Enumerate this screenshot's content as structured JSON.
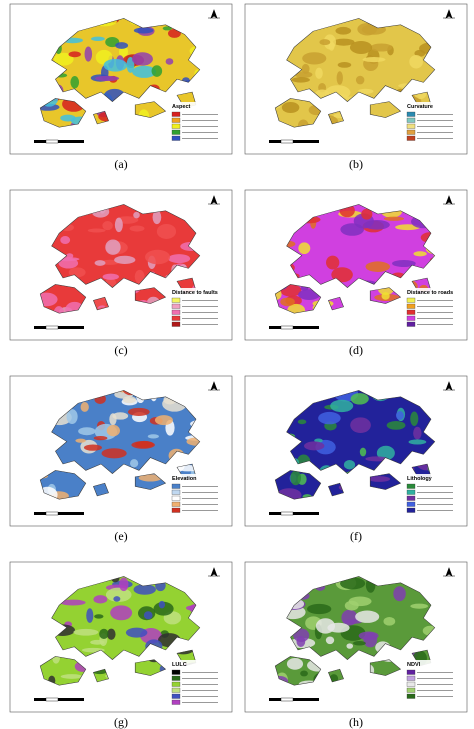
{
  "panels": [
    {
      "label": "(a)",
      "legend_title": "Aspect"
    },
    {
      "label": "(b)",
      "legend_title": "Curvature"
    },
    {
      "label": "(c)",
      "legend_title": "Distance to faults"
    },
    {
      "label": "(d)",
      "legend_title": "Distance to roads"
    },
    {
      "label": "(e)",
      "legend_title": "Elevation"
    },
    {
      "label": "(f)",
      "legend_title": "Lithology"
    },
    {
      "label": "(g)",
      "legend_title": "LULC"
    },
    {
      "label": "(h)",
      "legend_title": "NDVI"
    }
  ]
}
